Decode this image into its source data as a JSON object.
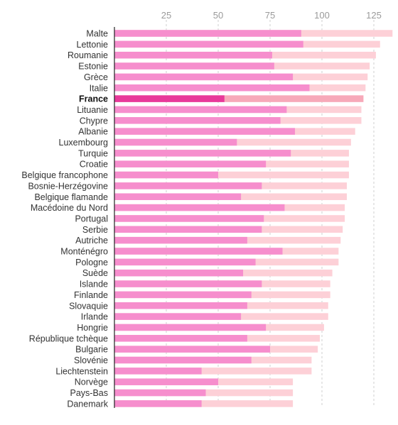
{
  "chart_data": {
    "type": "bar",
    "orientation": "horizontal",
    "title": "",
    "xlabel": "",
    "ylabel": "",
    "xlim": [
      0,
      135
    ],
    "xticks": [
      25,
      50,
      75,
      100,
      125
    ],
    "grid": true,
    "highlight": "France",
    "colors": {
      "front": "#f68ecd",
      "back": "#fdd0d7",
      "front_highlight": "#e8399a",
      "back_highlight": "#f7a9b9",
      "grid": "#cfcfcf",
      "axis": "#222222"
    },
    "categories": [
      "Malte",
      "Lettonie",
      "Roumanie",
      "Estonie",
      "Grèce",
      "Italie",
      "France",
      "Lituanie",
      "Chypre",
      "Albanie",
      "Luxembourg",
      "Turquie",
      "Croatie",
      "Belgique francophone",
      "Bosnie-Herzégovine",
      "Belgique flamande",
      "Macédoine du Nord",
      "Portugal",
      "Serbie",
      "Autriche",
      "Monténégro",
      "Pologne",
      "Suède",
      "Islande",
      "Finlande",
      "Slovaquie",
      "Irlande",
      "Hongrie",
      "République tchèque",
      "Bulgarie",
      "Slovénie",
      "Liechtenstein",
      "Norvège",
      "Pays-Bas",
      "Danemark"
    ],
    "series": [
      {
        "values": [
          134,
          128,
          126,
          123,
          122,
          121,
          120,
          119,
          119,
          116,
          114,
          113,
          113,
          113,
          112,
          112,
          111,
          111,
          110,
          109,
          108,
          108,
          105,
          104,
          104,
          103,
          103,
          101,
          99,
          98,
          95,
          95,
          86,
          86,
          86
        ]
      },
      {
        "values": [
          90,
          91,
          76,
          77,
          86,
          94,
          53,
          83,
          80,
          87,
          59,
          85,
          73,
          50,
          71,
          61,
          82,
          72,
          71,
          64,
          81,
          68,
          62,
          71,
          66,
          64,
          61,
          73,
          64,
          75,
          66,
          42,
          50,
          44,
          42
        ]
      }
    ]
  }
}
